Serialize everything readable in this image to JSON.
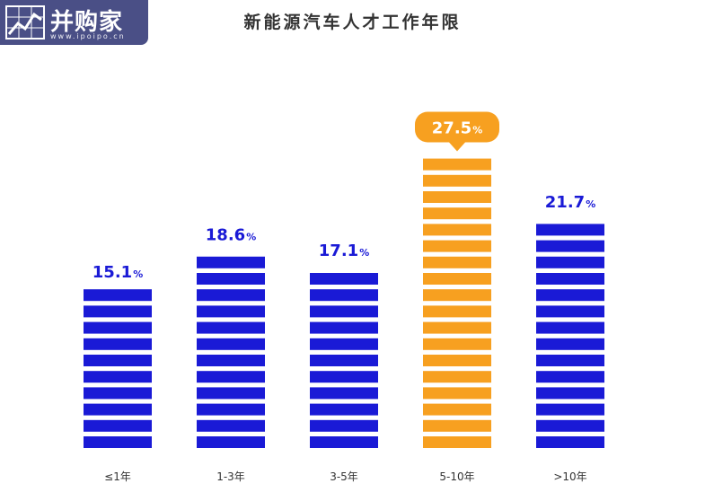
{
  "logo": {
    "text": "并购家",
    "sub": "www.ipoipo.cn"
  },
  "chart_data": {
    "type": "bar",
    "title": "新能源汽车人才工作年限",
    "categories": [
      "≤1年",
      "1-3年",
      "3-5年",
      "5-10年",
      ">10年"
    ],
    "values": [
      15.1,
      18.6,
      17.1,
      27.5,
      21.7
    ],
    "value_suffix": "%",
    "highlight_index": 3,
    "colors": {
      "default": "#1a1ad6",
      "highlight": "#f7a020"
    },
    "xlabel": "",
    "ylabel": "",
    "legend": "none",
    "grid": false
  }
}
